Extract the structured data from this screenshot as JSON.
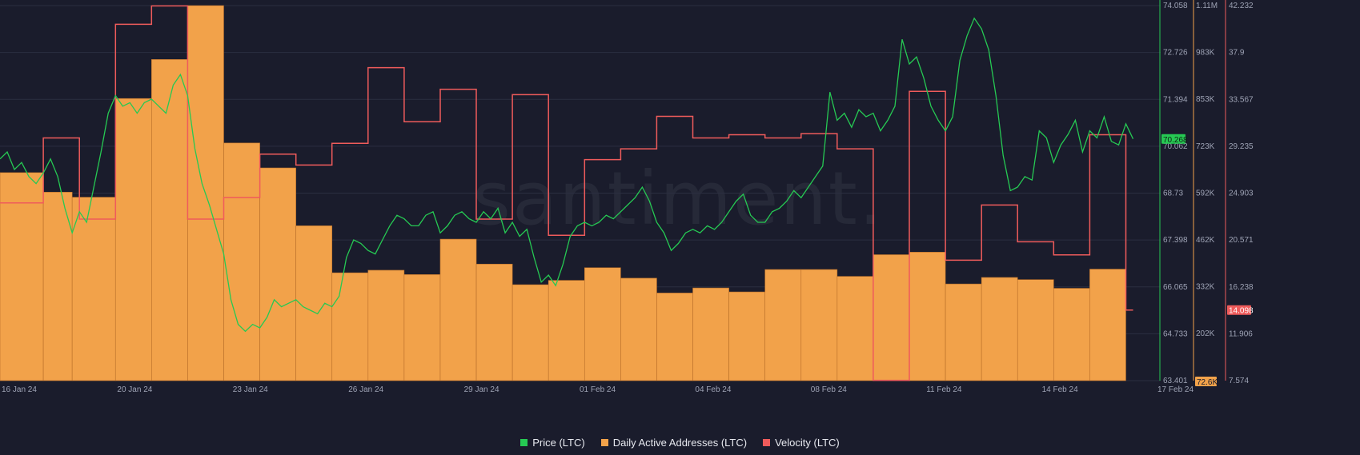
{
  "watermark": "santiment.",
  "colors": {
    "background": "#1a1c2c",
    "grid": "#2b2e40",
    "price": "#26c953",
    "daa": "#f2a24a",
    "daa_edge": "#b96f2a",
    "velocity": "#ef5b5b",
    "axis_text": "#9ea3b5"
  },
  "chart_data": {
    "type": "line",
    "grid": true,
    "legend_position": "bottom-center",
    "x_ticks": [
      "16 Jan 24",
      "20 Jan 24",
      "23 Jan 24",
      "26 Jan 24",
      "29 Jan 24",
      "01 Feb 24",
      "04 Feb 24",
      "08 Feb 24",
      "11 Feb 24",
      "14 Feb 24",
      "17 Feb 24"
    ],
    "x_range_days": [
      0,
      31.5
    ],
    "axes": {
      "price": {
        "ticks": [
          "74.058",
          "72.726",
          "71.394",
          "70.062",
          "68.73",
          "67.398",
          "66.065",
          "64.733",
          "63.401"
        ],
        "ylim": [
          63.401,
          74.058
        ],
        "current_label": "70.268"
      },
      "daa": {
        "ticks": [
          "1.11M",
          "983K",
          "853K",
          "723K",
          "592K",
          "462K",
          "332K",
          "202K"
        ],
        "ylim": [
          72.6,
          1110
        ],
        "units": "K",
        "current_label": "72.6K"
      },
      "velocity": {
        "ticks": [
          "42.232",
          "37.9",
          "33.567",
          "29.235",
          "24.903",
          "20.571",
          "16.238",
          "11.906",
          "7.574"
        ],
        "ylim": [
          7.574,
          42.232
        ],
        "current_label": "14.098"
      }
    },
    "series": [
      {
        "name": "Price (LTC)",
        "style": "line",
        "axis": "price",
        "points": [
          [
            0,
            69.7
          ],
          [
            0.2,
            69.9
          ],
          [
            0.4,
            69.4
          ],
          [
            0.6,
            69.6
          ],
          [
            0.8,
            69.2
          ],
          [
            1.0,
            69.0
          ],
          [
            1.2,
            69.3
          ],
          [
            1.4,
            69.7
          ],
          [
            1.6,
            69.2
          ],
          [
            1.8,
            68.3
          ],
          [
            2.0,
            67.6
          ],
          [
            2.2,
            68.2
          ],
          [
            2.4,
            67.9
          ],
          [
            2.6,
            68.9
          ],
          [
            2.8,
            69.9
          ],
          [
            3.0,
            71.0
          ],
          [
            3.2,
            71.5
          ],
          [
            3.4,
            71.2
          ],
          [
            3.6,
            71.3
          ],
          [
            3.8,
            71.0
          ],
          [
            4.0,
            71.3
          ],
          [
            4.2,
            71.4
          ],
          [
            4.4,
            71.2
          ],
          [
            4.6,
            71.0
          ],
          [
            4.8,
            71.8
          ],
          [
            5.0,
            72.1
          ],
          [
            5.2,
            71.5
          ],
          [
            5.4,
            70.0
          ],
          [
            5.6,
            69.0
          ],
          [
            5.8,
            68.4
          ],
          [
            6.0,
            67.7
          ],
          [
            6.2,
            67.0
          ],
          [
            6.4,
            65.7
          ],
          [
            6.6,
            65.0
          ],
          [
            6.8,
            64.8
          ],
          [
            7.0,
            65.0
          ],
          [
            7.2,
            64.9
          ],
          [
            7.4,
            65.2
          ],
          [
            7.6,
            65.7
          ],
          [
            7.8,
            65.5
          ],
          [
            8.0,
            65.6
          ],
          [
            8.2,
            65.7
          ],
          [
            8.4,
            65.5
          ],
          [
            8.6,
            65.4
          ],
          [
            8.8,
            65.3
          ],
          [
            9.0,
            65.6
          ],
          [
            9.2,
            65.5
          ],
          [
            9.4,
            65.8
          ],
          [
            9.6,
            66.9
          ],
          [
            9.8,
            67.4
          ],
          [
            10.0,
            67.3
          ],
          [
            10.2,
            67.1
          ],
          [
            10.4,
            67.0
          ],
          [
            10.6,
            67.4
          ],
          [
            10.8,
            67.8
          ],
          [
            11.0,
            68.1
          ],
          [
            11.2,
            68.0
          ],
          [
            11.4,
            67.8
          ],
          [
            11.6,
            67.8
          ],
          [
            11.8,
            68.1
          ],
          [
            12.0,
            68.2
          ],
          [
            12.2,
            67.6
          ],
          [
            12.4,
            67.8
          ],
          [
            12.6,
            68.1
          ],
          [
            12.8,
            68.2
          ],
          [
            13.0,
            68.0
          ],
          [
            13.2,
            67.9
          ],
          [
            13.4,
            68.2
          ],
          [
            13.6,
            68.0
          ],
          [
            13.8,
            68.3
          ],
          [
            14.0,
            67.6
          ],
          [
            14.2,
            67.9
          ],
          [
            14.4,
            67.5
          ],
          [
            14.6,
            67.7
          ],
          [
            14.8,
            66.9
          ],
          [
            15.0,
            66.2
          ],
          [
            15.2,
            66.4
          ],
          [
            15.4,
            66.1
          ],
          [
            15.6,
            66.7
          ],
          [
            15.8,
            67.5
          ],
          [
            16.0,
            67.8
          ],
          [
            16.2,
            67.9
          ],
          [
            16.4,
            67.8
          ],
          [
            16.6,
            67.9
          ],
          [
            16.8,
            68.1
          ],
          [
            17.0,
            68.0
          ],
          [
            17.2,
            68.2
          ],
          [
            17.4,
            68.4
          ],
          [
            17.6,
            68.6
          ],
          [
            17.8,
            68.9
          ],
          [
            18.0,
            68.5
          ],
          [
            18.2,
            67.9
          ],
          [
            18.4,
            67.6
          ],
          [
            18.6,
            67.1
          ],
          [
            18.8,
            67.3
          ],
          [
            19.0,
            67.6
          ],
          [
            19.2,
            67.7
          ],
          [
            19.4,
            67.6
          ],
          [
            19.6,
            67.8
          ],
          [
            19.8,
            67.7
          ],
          [
            20.0,
            67.9
          ],
          [
            20.2,
            68.2
          ],
          [
            20.4,
            68.5
          ],
          [
            20.6,
            68.7
          ],
          [
            20.8,
            68.1
          ],
          [
            21.0,
            67.9
          ],
          [
            21.2,
            67.9
          ],
          [
            21.4,
            68.2
          ],
          [
            21.6,
            68.3
          ],
          [
            21.8,
            68.5
          ],
          [
            22.0,
            68.8
          ],
          [
            22.2,
            68.6
          ],
          [
            22.4,
            68.9
          ],
          [
            22.6,
            69.2
          ],
          [
            22.8,
            69.5
          ],
          [
            23.0,
            71.6
          ],
          [
            23.2,
            70.8
          ],
          [
            23.4,
            71.0
          ],
          [
            23.6,
            70.6
          ],
          [
            23.8,
            71.1
          ],
          [
            24.0,
            70.9
          ],
          [
            24.2,
            71.0
          ],
          [
            24.4,
            70.5
          ],
          [
            24.6,
            70.8
          ],
          [
            24.8,
            71.2
          ],
          [
            25.0,
            73.1
          ],
          [
            25.2,
            72.4
          ],
          [
            25.4,
            72.6
          ],
          [
            25.6,
            72.0
          ],
          [
            25.8,
            71.2
          ],
          [
            26.0,
            70.8
          ],
          [
            26.2,
            70.5
          ],
          [
            26.4,
            70.9
          ],
          [
            26.6,
            72.5
          ],
          [
            26.8,
            73.2
          ],
          [
            27.0,
            73.7
          ],
          [
            27.2,
            73.4
          ],
          [
            27.4,
            72.8
          ],
          [
            27.6,
            71.5
          ],
          [
            27.8,
            69.8
          ],
          [
            28.0,
            68.8
          ],
          [
            28.2,
            68.9
          ],
          [
            28.4,
            69.2
          ],
          [
            28.6,
            69.1
          ],
          [
            28.8,
            70.5
          ],
          [
            29.0,
            70.3
          ],
          [
            29.2,
            69.6
          ],
          [
            29.4,
            70.1
          ],
          [
            29.6,
            70.4
          ],
          [
            29.8,
            70.8
          ],
          [
            30.0,
            69.9
          ],
          [
            30.2,
            70.5
          ],
          [
            30.4,
            70.3
          ],
          [
            30.6,
            70.9
          ],
          [
            30.8,
            70.2
          ],
          [
            31.0,
            70.1
          ],
          [
            31.2,
            70.7
          ],
          [
            31.4,
            70.27
          ]
        ]
      },
      {
        "name": "Daily Active Addresses (LTC)",
        "style": "step-bars",
        "axis": "daa",
        "points": [
          [
            0,
            648
          ],
          [
            1.2,
            594
          ],
          [
            2.0,
            580
          ],
          [
            3.2,
            853
          ],
          [
            4.2,
            961
          ],
          [
            5.2,
            1110
          ],
          [
            6.2,
            730
          ],
          [
            7.2,
            661
          ],
          [
            8.2,
            501
          ],
          [
            9.2,
            371
          ],
          [
            10.2,
            378
          ],
          [
            11.2,
            366
          ],
          [
            12.2,
            464
          ],
          [
            13.2,
            395
          ],
          [
            14.2,
            338
          ],
          [
            15.2,
            350
          ],
          [
            16.2,
            385
          ],
          [
            17.2,
            356
          ],
          [
            18.2,
            315
          ],
          [
            19.2,
            329
          ],
          [
            20.2,
            318
          ],
          [
            21.2,
            380
          ],
          [
            22.2,
            380
          ],
          [
            23.2,
            361
          ],
          [
            24.2,
            421
          ],
          [
            25.2,
            428
          ],
          [
            26.2,
            340
          ],
          [
            27.2,
            358
          ],
          [
            28.2,
            352
          ],
          [
            29.2,
            328
          ],
          [
            30.2,
            381
          ]
        ],
        "end": 31.2
      },
      {
        "name": "Velocity (LTC)",
        "style": "step-line",
        "axis": "velocity",
        "points": [
          [
            0,
            24.0
          ],
          [
            1.2,
            30.0
          ],
          [
            2.2,
            22.5
          ],
          [
            3.2,
            40.5
          ],
          [
            4.2,
            42.2
          ],
          [
            5.2,
            22.5
          ],
          [
            6.2,
            24.5
          ],
          [
            7.2,
            28.5
          ],
          [
            8.2,
            27.5
          ],
          [
            9.2,
            29.5
          ],
          [
            10.2,
            36.5
          ],
          [
            11.2,
            31.5
          ],
          [
            12.2,
            34.5
          ],
          [
            13.2,
            22.5
          ],
          [
            14.2,
            34.0
          ],
          [
            15.2,
            21.0
          ],
          [
            16.2,
            28.0
          ],
          [
            17.2,
            29.0
          ],
          [
            18.2,
            32.0
          ],
          [
            19.2,
            30.0
          ],
          [
            20.2,
            30.3
          ],
          [
            21.2,
            30.0
          ],
          [
            22.2,
            30.4
          ],
          [
            23.2,
            29.0
          ],
          [
            24.2,
            7.6
          ],
          [
            25.2,
            34.3
          ],
          [
            26.2,
            18.7
          ],
          [
            27.2,
            23.8
          ],
          [
            28.2,
            20.4
          ],
          [
            29.2,
            19.2
          ],
          [
            30.2,
            30.3
          ],
          [
            31.2,
            14.098
          ]
        ],
        "end": 31.4
      }
    ]
  },
  "legend": [
    {
      "label": "Price (LTC)"
    },
    {
      "label": "Daily Active Addresses (LTC)"
    },
    {
      "label": "Velocity (LTC)"
    }
  ]
}
